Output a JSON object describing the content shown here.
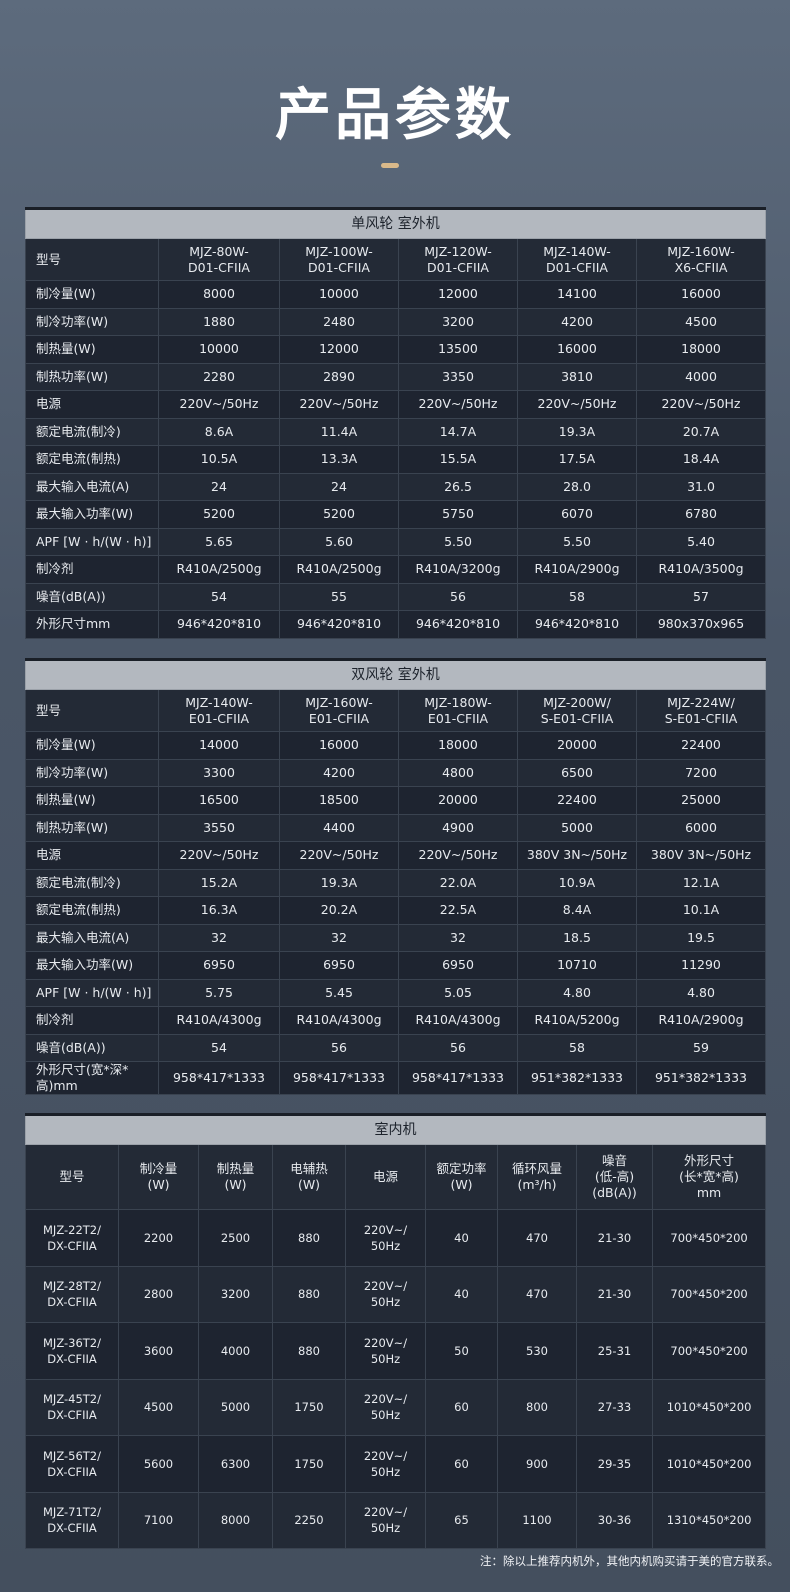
{
  "title": "产品参数",
  "tables": [
    {
      "heading": "单风轮 室外机",
      "rows": [
        [
          "型号",
          "MJZ-80W-\nD01-CFIIA",
          "MJZ-100W-\nD01-CFIIA",
          "MJZ-120W-\nD01-CFIIA",
          "MJZ-140W-\nD01-CFIIA",
          "MJZ-160W-\nX6-CFIIA"
        ],
        [
          "制冷量(W)",
          "8000",
          "10000",
          "12000",
          "14100",
          "16000"
        ],
        [
          "制冷功率(W)",
          "1880",
          "2480",
          "3200",
          "4200",
          "4500"
        ],
        [
          "制热量(W)",
          "10000",
          "12000",
          "13500",
          "16000",
          "18000"
        ],
        [
          "制热功率(W)",
          "2280",
          "2890",
          "3350",
          "3810",
          "4000"
        ],
        [
          "电源",
          "220V~/50Hz",
          "220V~/50Hz",
          "220V~/50Hz",
          "220V~/50Hz",
          "220V~/50Hz"
        ],
        [
          "额定电流(制冷)",
          "8.6A",
          "11.4A",
          "14.7A",
          "19.3A",
          "20.7A"
        ],
        [
          "额定电流(制热)",
          "10.5A",
          "13.3A",
          "15.5A",
          "17.5A",
          "18.4A"
        ],
        [
          "最大输入电流(A)",
          "24",
          "24",
          "26.5",
          "28.0",
          "31.0"
        ],
        [
          "最大输入功率(W)",
          "5200",
          "5200",
          "5750",
          "6070",
          "6780"
        ],
        [
          "APF [W · h/(W · h)]",
          "5.65",
          "5.60",
          "5.50",
          "5.50",
          "5.40"
        ],
        [
          "制冷剂",
          "R410A/2500g",
          "R410A/2500g",
          "R410A/3200g",
          "R410A/2900g",
          "R410A/3500g"
        ],
        [
          "噪音(dB(A))",
          "54",
          "55",
          "56",
          "58",
          "57"
        ],
        [
          "外形尺寸mm",
          "946*420*810",
          "946*420*810",
          "946*420*810",
          "946*420*810",
          "980x370x965"
        ]
      ]
    },
    {
      "heading": "双风轮 室外机",
      "rows": [
        [
          "型号",
          "MJZ-140W-\nE01-CFIIA",
          "MJZ-160W-\nE01-CFIIA",
          "MJZ-180W-\nE01-CFIIA",
          "MJZ-200W/\nS-E01-CFIIA",
          "MJZ-224W/\nS-E01-CFIIA"
        ],
        [
          "制冷量(W)",
          "14000",
          "16000",
          "18000",
          "20000",
          "22400"
        ],
        [
          "制冷功率(W)",
          "3300",
          "4200",
          "4800",
          "6500",
          "7200"
        ],
        [
          "制热量(W)",
          "16500",
          "18500",
          "20000",
          "22400",
          "25000"
        ],
        [
          "制热功率(W)",
          "3550",
          "4400",
          "4900",
          "5000",
          "6000"
        ],
        [
          "电源",
          "220V~/50Hz",
          "220V~/50Hz",
          "220V~/50Hz",
          "380V 3N~/50Hz",
          "380V 3N~/50Hz"
        ],
        [
          "额定电流(制冷)",
          "15.2A",
          "19.3A",
          "22.0A",
          "10.9A",
          "12.1A"
        ],
        [
          "额定电流(制热)",
          "16.3A",
          "20.2A",
          "22.5A",
          "8.4A",
          "10.1A"
        ],
        [
          "最大输入电流(A)",
          "32",
          "32",
          "32",
          "18.5",
          "19.5"
        ],
        [
          "最大输入功率(W)",
          "6950",
          "6950",
          "6950",
          "10710",
          "11290"
        ],
        [
          "APF [W · h/(W · h)]",
          "5.75",
          "5.45",
          "5.05",
          "4.80",
          "4.80"
        ],
        [
          "制冷剂",
          "R410A/4300g",
          "R410A/4300g",
          "R410A/4300g",
          "R410A/5200g",
          "R410A/2900g"
        ],
        [
          "噪音(dB(A))",
          "54",
          "56",
          "56",
          "58",
          "59"
        ],
        [
          "外形尺寸(宽*深*高)mm",
          "958*417*1333",
          "958*417*1333",
          "958*417*1333",
          "951*382*1333",
          "951*382*1333"
        ]
      ]
    },
    {
      "heading": "室内机",
      "rows": [
        [
          "型号",
          "制冷量\n(W)",
          "制热量\n(W)",
          "电辅热\n(W)",
          "电源",
          "额定功率\n(W)",
          "循环风量\n(m³/h)",
          "噪音\n(低-高)\n(dB(A))",
          "外形尺寸\n(长*宽*高)\nmm"
        ],
        [
          "MJZ-22T2/\nDX-CFIIA",
          "2200",
          "2500",
          "880",
          "220V~/\n50Hz",
          "40",
          "470",
          "21-30",
          "700*450*200"
        ],
        [
          "MJZ-28T2/\nDX-CFIIA",
          "2800",
          "3200",
          "880",
          "220V~/\n50Hz",
          "40",
          "470",
          "21-30",
          "700*450*200"
        ],
        [
          "MJZ-36T2/\nDX-CFIIA",
          "3600",
          "4000",
          "880",
          "220V~/\n50Hz",
          "50",
          "530",
          "25-31",
          "700*450*200"
        ],
        [
          "MJZ-45T2/\nDX-CFIIA",
          "4500",
          "5000",
          "1750",
          "220V~/\n50Hz",
          "60",
          "800",
          "27-33",
          "1010*450*200"
        ],
        [
          "MJZ-56T2/\nDX-CFIIA",
          "5600",
          "6300",
          "1750",
          "220V~/\n50Hz",
          "60",
          "900",
          "29-35",
          "1010*450*200"
        ],
        [
          "MJZ-71T2/\nDX-CFIIA",
          "7100",
          "8000",
          "2250",
          "220V~/\n50Hz",
          "65",
          "1100",
          "30-36",
          "1310*450*200"
        ]
      ]
    }
  ],
  "note": "注：除以上推荐内机外，其他内机购买请于美的官方联系。"
}
